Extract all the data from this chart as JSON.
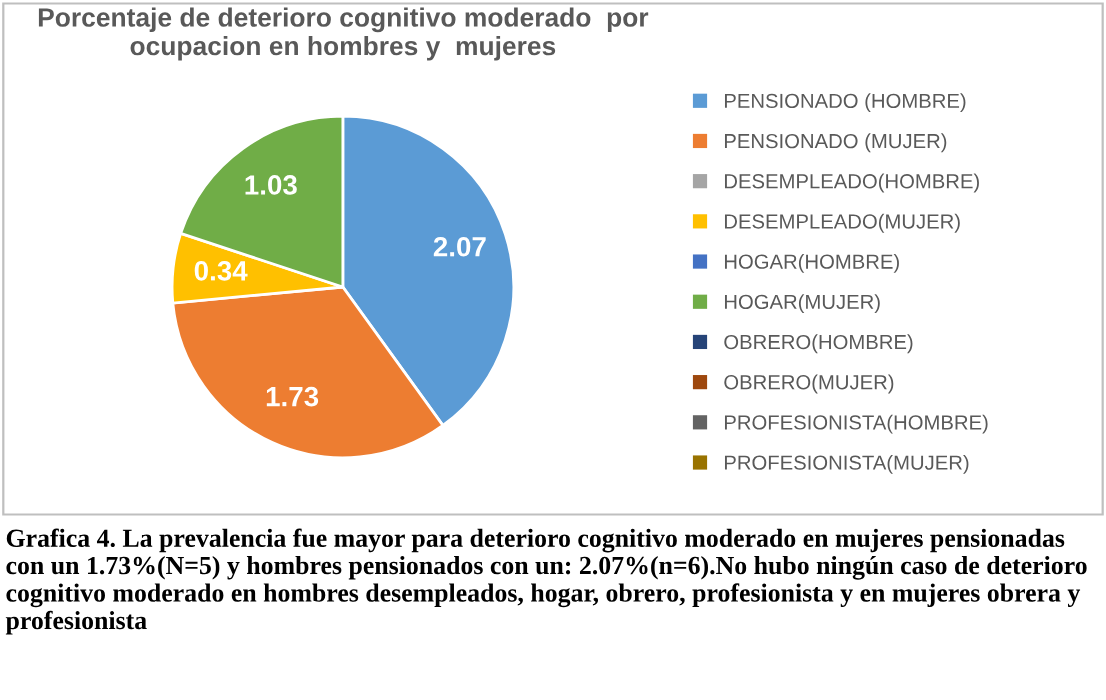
{
  "chart_data": {
    "type": "pie",
    "title": "Porcentaje de deterioro cognitivo moderado  por ocupacion en hombres y  mujeres",
    "categories": [
      "PENSIONADO (HOMBRE)",
      "PENSIONADO (MUJER)",
      "DESEMPLEADO(HOMBRE)",
      "DESEMPLEADO(MUJER)",
      "HOGAR(HOMBRE)",
      "HOGAR(MUJER)",
      "OBRERO(HOMBRE)",
      "OBRERO(MUJER)",
      "PROFESIONISTA(HOMBRE)",
      "PROFESIONISTA(MUJER)"
    ],
    "values": [
      2.07,
      1.73,
      0,
      0.34,
      0,
      1.03,
      0,
      0,
      0,
      0
    ],
    "value_labels": [
      "2.07",
      "1.73",
      null,
      "0.34",
      null,
      "1.03",
      null,
      null,
      null,
      null
    ],
    "colors": [
      "#5b9bd5",
      "#ed7d31",
      "#a5a5a5",
      "#ffc000",
      "#4472c4",
      "#70ad47",
      "#264478",
      "#9e480e",
      "#636363",
      "#997300"
    ],
    "legend": "right",
    "annotations": [
      "Grafica 4. La prevalencia fue mayor para deterioro cognitivo moderado en mujeres pensionadas con un 1.73%(N=5) y hombres pensionados con un: 2.07%(n=6).No hubo ningún caso de deterioro cognitivo moderado en hombres desempleados, hogar, obrero, profesionista y en mujeres obrera y profesionista"
    ]
  }
}
